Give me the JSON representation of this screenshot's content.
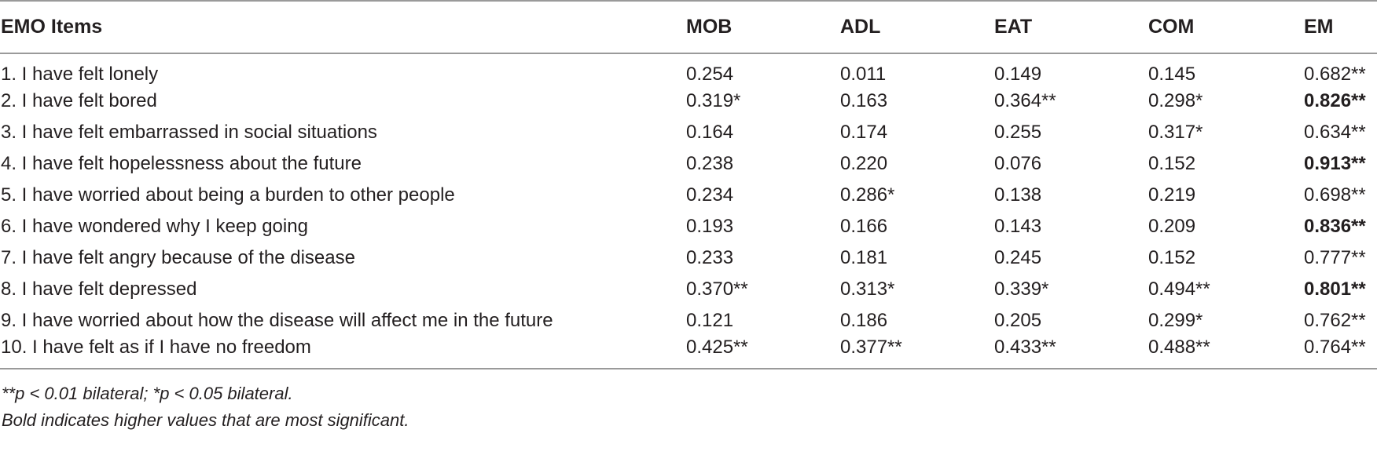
{
  "table": {
    "headers": [
      "EMO Items",
      "MOB",
      "ADL",
      "EAT",
      "COM",
      "EM"
    ],
    "rows": [
      [
        {
          "v": "1. I have felt lonely"
        },
        {
          "v": "0.254"
        },
        {
          "v": "0.011"
        },
        {
          "v": "0.149"
        },
        {
          "v": "0.145"
        },
        {
          "v": "0.682**",
          "bold": false
        }
      ],
      [
        {
          "v": "2. I have felt bored"
        },
        {
          "v": "0.319*"
        },
        {
          "v": "0.163"
        },
        {
          "v": "0.364**"
        },
        {
          "v": "0.298*"
        },
        {
          "v": "0.826**",
          "bold": true
        }
      ],
      [
        {
          "v": "3. I have felt embarrassed in social situations"
        },
        {
          "v": "0.164"
        },
        {
          "v": "0.174"
        },
        {
          "v": "0.255"
        },
        {
          "v": "0.317*"
        },
        {
          "v": "0.634**",
          "bold": false
        }
      ],
      [
        {
          "v": "4. I have felt hopelessness about the future"
        },
        {
          "v": "0.238"
        },
        {
          "v": "0.220"
        },
        {
          "v": "0.076"
        },
        {
          "v": "0.152"
        },
        {
          "v": "0.913**",
          "bold": true
        }
      ],
      [
        {
          "v": "5. I have worried about being a burden to other people"
        },
        {
          "v": "0.234"
        },
        {
          "v": "0.286*"
        },
        {
          "v": "0.138"
        },
        {
          "v": "0.219"
        },
        {
          "v": "0.698**",
          "bold": false
        }
      ],
      [
        {
          "v": "6. I have wondered why I keep going"
        },
        {
          "v": "0.193"
        },
        {
          "v": "0.166"
        },
        {
          "v": "0.143"
        },
        {
          "v": "0.209"
        },
        {
          "v": "0.836**",
          "bold": true
        }
      ],
      [
        {
          "v": "7. I have felt angry because of the disease"
        },
        {
          "v": "0.233"
        },
        {
          "v": "0.181"
        },
        {
          "v": "0.245"
        },
        {
          "v": "0.152"
        },
        {
          "v": "0.777**",
          "bold": false
        }
      ],
      [
        {
          "v": "8. I have felt depressed"
        },
        {
          "v": "0.370**"
        },
        {
          "v": "0.313*"
        },
        {
          "v": "0.339*"
        },
        {
          "v": "0.494**"
        },
        {
          "v": "0.801**",
          "bold": true
        }
      ],
      [
        {
          "v": "9. I have worried about how the disease will affect me in the future"
        },
        {
          "v": "0.121"
        },
        {
          "v": "0.186"
        },
        {
          "v": "0.205"
        },
        {
          "v": "0.299*"
        },
        {
          "v": "0.762**",
          "bold": false
        }
      ],
      [
        {
          "v": "10. I have felt as if I have no freedom"
        },
        {
          "v": "0.425**"
        },
        {
          "v": "0.377**"
        },
        {
          "v": "0.433**"
        },
        {
          "v": "0.488**"
        },
        {
          "v": "0.764**",
          "bold": false
        }
      ]
    ],
    "footnotes": [
      "**p < 0.01 bilateral; *p < 0.05 bilateral.",
      "Bold indicates higher values that are most significant."
    ]
  },
  "colors": {
    "rule": "#9a9a9a",
    "text": "#231f20"
  }
}
